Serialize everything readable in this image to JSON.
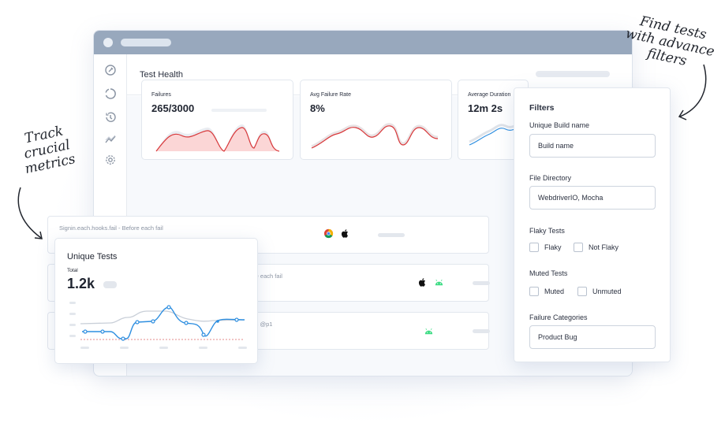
{
  "annotations": {
    "left": [
      "Track crucial",
      "metrics"
    ],
    "right": [
      "Find tests",
      "with advance",
      "filters"
    ]
  },
  "page": {
    "title": "Test Health"
  },
  "sidebar": {
    "icons": [
      "wrench-icon",
      "loading-circle-icon",
      "history-icon",
      "trend-icon",
      "gear-icon"
    ]
  },
  "metrics": [
    {
      "label": "Failures",
      "value": "265/3000"
    },
    {
      "label": "Avg Failure Rate",
      "value": "8%"
    },
    {
      "label": "Average Duration",
      "value": "12m 2s"
    }
  ],
  "tests": [
    {
      "name": "Signin.each.hooks.fail - Before each fail",
      "platforms": [
        "chrome-icon",
        "apple-icon"
      ]
    },
    {
      "name": "ere each fail",
      "platforms": [
        "apple-icon",
        "android-icon"
      ]
    },
    {
      "name": "rgs @p1",
      "platforms": [
        "android-icon"
      ]
    }
  ],
  "unique_tests": {
    "title": "Unique Tests",
    "subtitle": "Total",
    "value": "1.2k"
  },
  "filters": {
    "title": "Filters",
    "unique_build_name": {
      "label": "Unique Build name",
      "value": "Build name"
    },
    "file_directory": {
      "label": "File Directory",
      "value": "WebdriverIO, Mocha"
    },
    "flaky_tests": {
      "label": "Flaky Tests",
      "options": [
        "Flaky",
        "Not Flaky"
      ]
    },
    "muted_tests": {
      "label": "Muted Tests",
      "options": [
        "Muted",
        "Unmuted"
      ]
    },
    "failure_categories": {
      "label": "Failure Categories",
      "value": "Product Bug"
    }
  },
  "colors": {
    "titlebar": "#98a8bd",
    "failure_red": "#d9383a",
    "duration_blue": "#2f8fe0",
    "android_green": "#3ddc84"
  }
}
